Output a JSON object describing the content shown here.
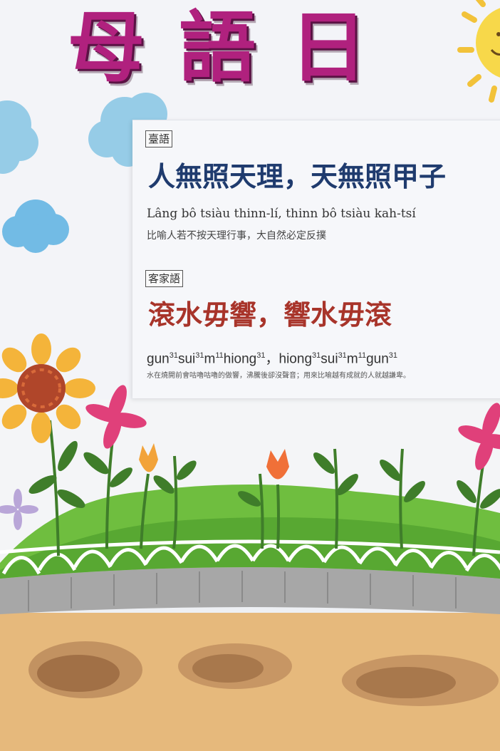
{
  "poster": {
    "title_chars": [
      "母",
      "語",
      "日"
    ]
  },
  "taiwanese": {
    "tag": "臺語",
    "proverb": "人無照天理，天無照甲子",
    "romanization": "Lâng bô tsiàu thinn-lí, thinn bô tsiàu kah-tsí",
    "meaning": "比喻人若不按天理行事，大自然必定反撲",
    "color": "#1f3b6e"
  },
  "hakka": {
    "tag": "客家語",
    "proverb": "滾水毋響，響水毋滾",
    "romanization": [
      {
        "syl": "gun",
        "tone": "31"
      },
      {
        "syl": "sui",
        "tone": "31"
      },
      {
        "syl": "m",
        "tone": "11"
      },
      {
        "syl": "hiong",
        "tone": "31"
      },
      {
        "sep": "，"
      },
      {
        "syl": "hiong",
        "tone": "31"
      },
      {
        "syl": "sui",
        "tone": "31"
      },
      {
        "syl": "m",
        "tone": "11"
      },
      {
        "syl": "gun",
        "tone": "31"
      }
    ],
    "meaning": "水在燒開前會咕嚕咕嚕的做響，沸騰後卻沒聲音；用來比喻越有成就的人就越謙卑。",
    "color": "#a8342a"
  },
  "colors": {
    "title": "#b0217e",
    "grass": "#6fbe3f",
    "soil": "#e3b67c",
    "fence": "#ffffff",
    "curb": "#9a9a9a"
  }
}
